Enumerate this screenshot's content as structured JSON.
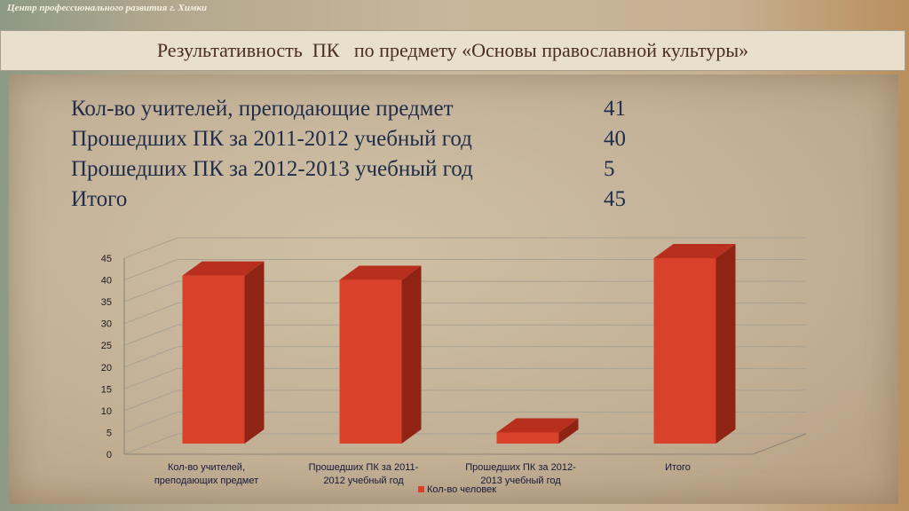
{
  "header": {
    "org": "Центр профессионального развития г. Химки",
    "title": "Результативность  ПК   по предмету «Основы православной культуры»"
  },
  "stats": [
    {
      "label": "Кол-во учителей, преподающие предмет",
      "value": "41"
    },
    {
      "label": "Прошедших ПК за 2011-2012 учебный год",
      "value": "40"
    },
    {
      "label": "Прошедших ПК за 2012-2013 учебный год",
      "value": "5"
    },
    {
      "label": "Итого",
      "value": "45"
    }
  ],
  "chart_data": {
    "type": "bar",
    "categories": [
      [
        "Кол-во учителей,",
        "преподающих предмет"
      ],
      [
        "Прошедших ПК за        2011-",
        "2012 учебный год"
      ],
      [
        "Прошедших ПК за        2012-",
        "2013 учебный год"
      ],
      [
        "Итого"
      ]
    ],
    "series": [
      {
        "name": "Кол-во человек",
        "values": [
          41,
          40,
          5,
          45
        ],
        "color": "#d9412a"
      }
    ],
    "ylim": [
      0,
      45
    ],
    "yticks": [
      0,
      5,
      10,
      15,
      20,
      25,
      30,
      35,
      40,
      45
    ],
    "grid": true,
    "legend": "bottom",
    "colors": {
      "bar_front": "#d9412a",
      "bar_side": "#8f2414",
      "bar_top": "#b8301d"
    }
  }
}
